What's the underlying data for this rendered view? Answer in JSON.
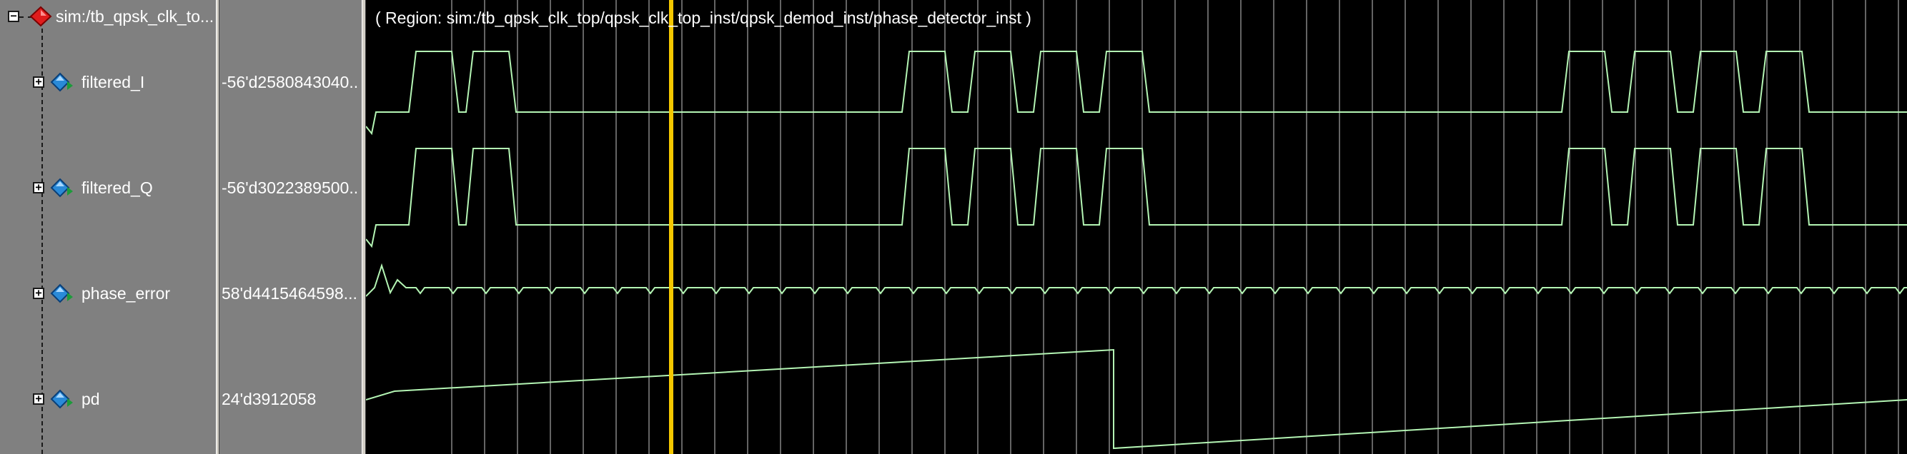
{
  "root": {
    "label": "sim:/tb_qpsk_clk_to...",
    "expander": "−",
    "icon": "red-diamond-icon"
  },
  "region_label": "( Region: sim:/tb_qpsk_clk_top/qpsk_clk_top_inst/qpsk_demod_inst/phase_detector_inst )",
  "signals": [
    {
      "name": "filtered_I",
      "value": "-56'd2580843040...",
      "expander": "+",
      "icon": "blue-diamond-icon"
    },
    {
      "name": "filtered_Q",
      "value": "-56'd3022389500...",
      "expander": "+",
      "icon": "blue-diamond-icon"
    },
    {
      "name": "phase_error",
      "value": "58'd4415464598...",
      "expander": "+",
      "icon": "blue-diamond-icon"
    },
    {
      "name": "pd",
      "value": "24'd3912058",
      "expander": "+",
      "icon": "blue-diamond-icon"
    }
  ],
  "colors": {
    "wave": "#b4f5b4",
    "cursor": "#f5c800",
    "grid": "#c8c8c8",
    "background": "#000000",
    "pane": "#808080"
  }
}
